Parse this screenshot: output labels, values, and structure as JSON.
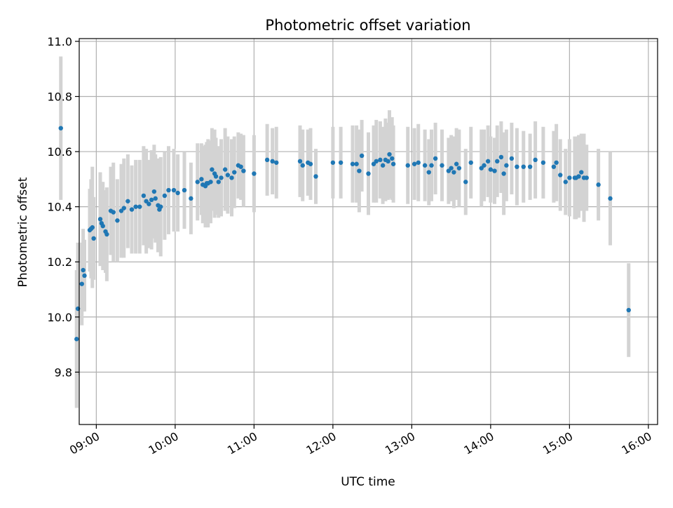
{
  "chart_data": {
    "type": "scatter",
    "title": "Photometric offset variation",
    "xlabel": "UTC time",
    "ylabel": "Photometric offset",
    "x_ticks": [
      "09:00",
      "10:00",
      "11:00",
      "12:00",
      "13:00",
      "14:00",
      "15:00",
      "16:00"
    ],
    "y_ticks": [
      "9.8",
      "10.0",
      "10.2",
      "10.4",
      "10.6",
      "10.8",
      "11.0"
    ],
    "xlim": [
      "08:47",
      "16:07"
    ],
    "ylim": [
      9.61,
      11.01
    ],
    "grid": true,
    "colors": {
      "marker": "#1f77b4",
      "errorbar": "#d3d3d3",
      "grid": "#b0b0b0"
    },
    "series": [
      {
        "x": [
          "08:33",
          "08:45",
          "08:46",
          "08:49",
          "08:50",
          "08:51",
          "08:55",
          "08:56",
          "08:57",
          "08:58",
          "09:03",
          "09:04",
          "09:05",
          "09:07",
          "09:08",
          "09:11",
          "09:13",
          "09:16",
          "09:19",
          "09:21",
          "09:24",
          "09:27",
          "09:30",
          "09:33",
          "09:36",
          "09:38",
          "09:40",
          "09:42",
          "09:44",
          "09:45",
          "09:47",
          "09:48",
          "09:49",
          "09:52",
          "09:55",
          "09:59",
          "10:02",
          "10:07",
          "10:12",
          "10:17",
          "10:20",
          "10:21",
          "10:23",
          "10:24",
          "10:25",
          "10:27",
          "10:28",
          "10:30",
          "10:31",
          "10:33",
          "10:35",
          "10:38",
          "10:40",
          "10:43",
          "10:45",
          "10:48",
          "10:50",
          "10:52",
          "11:00",
          "11:10",
          "11:14",
          "11:17",
          "11:35",
          "11:37",
          "11:41",
          "11:43",
          "11:47",
          "12:00",
          "12:06",
          "12:15",
          "12:18",
          "12:20",
          "12:22",
          "12:27",
          "12:31",
          "12:33",
          "12:36",
          "12:38",
          "12:40",
          "12:42",
          "12:43",
          "12:45",
          "12:46",
          "12:57",
          "13:02",
          "13:05",
          "13:10",
          "13:13",
          "13:15",
          "13:18",
          "13:23",
          "13:28",
          "13:30",
          "13:32",
          "13:34",
          "13:36",
          "13:41",
          "13:45",
          "13:53",
          "13:55",
          "13:58",
          "14:00",
          "14:03",
          "14:05",
          "14:08",
          "14:10",
          "14:12",
          "14:16",
          "14:20",
          "14:25",
          "14:30",
          "14:34",
          "14:40",
          "14:48",
          "14:50",
          "14:53",
          "14:57",
          "15:00",
          "15:04",
          "15:05",
          "15:07",
          "15:09",
          "15:11",
          "15:13",
          "15:22",
          "15:31",
          "15:45"
        ],
        "y": [
          10.685,
          9.92,
          10.03,
          10.12,
          10.17,
          10.15,
          10.315,
          10.32,
          10.325,
          10.285,
          10.355,
          10.34,
          10.33,
          10.31,
          10.3,
          10.385,
          10.38,
          10.35,
          10.385,
          10.395,
          10.42,
          10.39,
          10.4,
          10.4,
          10.44,
          10.42,
          10.41,
          10.425,
          10.455,
          10.43,
          10.405,
          10.39,
          10.4,
          10.44,
          10.46,
          10.46,
          10.45,
          10.46,
          10.43,
          10.49,
          10.5,
          10.48,
          10.475,
          10.485,
          10.485,
          10.49,
          10.535,
          10.52,
          10.51,
          10.49,
          10.505,
          10.535,
          10.515,
          10.505,
          10.525,
          10.55,
          10.545,
          10.53,
          10.52,
          10.57,
          10.565,
          10.56,
          10.565,
          10.55,
          10.56,
          10.555,
          10.51,
          10.56,
          10.56,
          10.555,
          10.555,
          10.53,
          10.585,
          10.52,
          10.555,
          10.565,
          10.57,
          10.55,
          10.57,
          10.565,
          10.59,
          10.575,
          10.555,
          10.55,
          10.555,
          10.56,
          10.55,
          10.525,
          10.55,
          10.575,
          10.55,
          10.53,
          10.54,
          10.525,
          10.555,
          10.54,
          10.49,
          10.56,
          10.54,
          10.55,
          10.565,
          10.535,
          10.53,
          10.565,
          10.58,
          10.52,
          10.55,
          10.575,
          10.545,
          10.545,
          10.545,
          10.57,
          10.56,
          10.545,
          10.56,
          10.515,
          10.49,
          10.505,
          10.505,
          10.505,
          10.51,
          10.525,
          10.505,
          10.505,
          10.48,
          10.43,
          10.025
        ],
        "err": [
          0.26,
          0.25,
          0.24,
          0.15,
          0.15,
          0.13,
          0.15,
          0.18,
          0.22,
          0.15,
          0.17,
          0.15,
          0.16,
          0.15,
          0.17,
          0.16,
          0.18,
          0.15,
          0.17,
          0.18,
          0.17,
          0.16,
          0.17,
          0.17,
          0.18,
          0.19,
          0.16,
          0.18,
          0.17,
          0.16,
          0.17,
          0.15,
          0.18,
          0.16,
          0.16,
          0.15,
          0.14,
          0.14,
          0.13,
          0.14,
          0.13,
          0.14,
          0.15,
          0.15,
          0.16,
          0.15,
          0.15,
          0.16,
          0.14,
          0.13,
          0.14,
          0.15,
          0.14,
          0.14,
          0.13,
          0.12,
          0.12,
          0.13,
          0.14,
          0.13,
          0.12,
          0.13,
          0.13,
          0.13,
          0.12,
          0.13,
          0.1,
          0.13,
          0.13,
          0.14,
          0.14,
          0.15,
          0.13,
          0.15,
          0.14,
          0.15,
          0.14,
          0.14,
          0.15,
          0.14,
          0.16,
          0.15,
          0.14,
          0.14,
          0.13,
          0.14,
          0.13,
          0.12,
          0.13,
          0.13,
          0.13,
          0.12,
          0.12,
          0.13,
          0.13,
          0.14,
          0.12,
          0.13,
          0.14,
          0.13,
          0.13,
          0.12,
          0.12,
          0.13,
          0.13,
          0.15,
          0.13,
          0.13,
          0.14,
          0.13,
          0.12,
          0.14,
          0.13,
          0.13,
          0.14,
          0.13,
          0.12,
          0.14,
          0.15,
          0.15,
          0.15,
          0.14,
          0.16,
          0.12,
          0.13,
          0.17,
          0.17
        ]
      }
    ]
  }
}
